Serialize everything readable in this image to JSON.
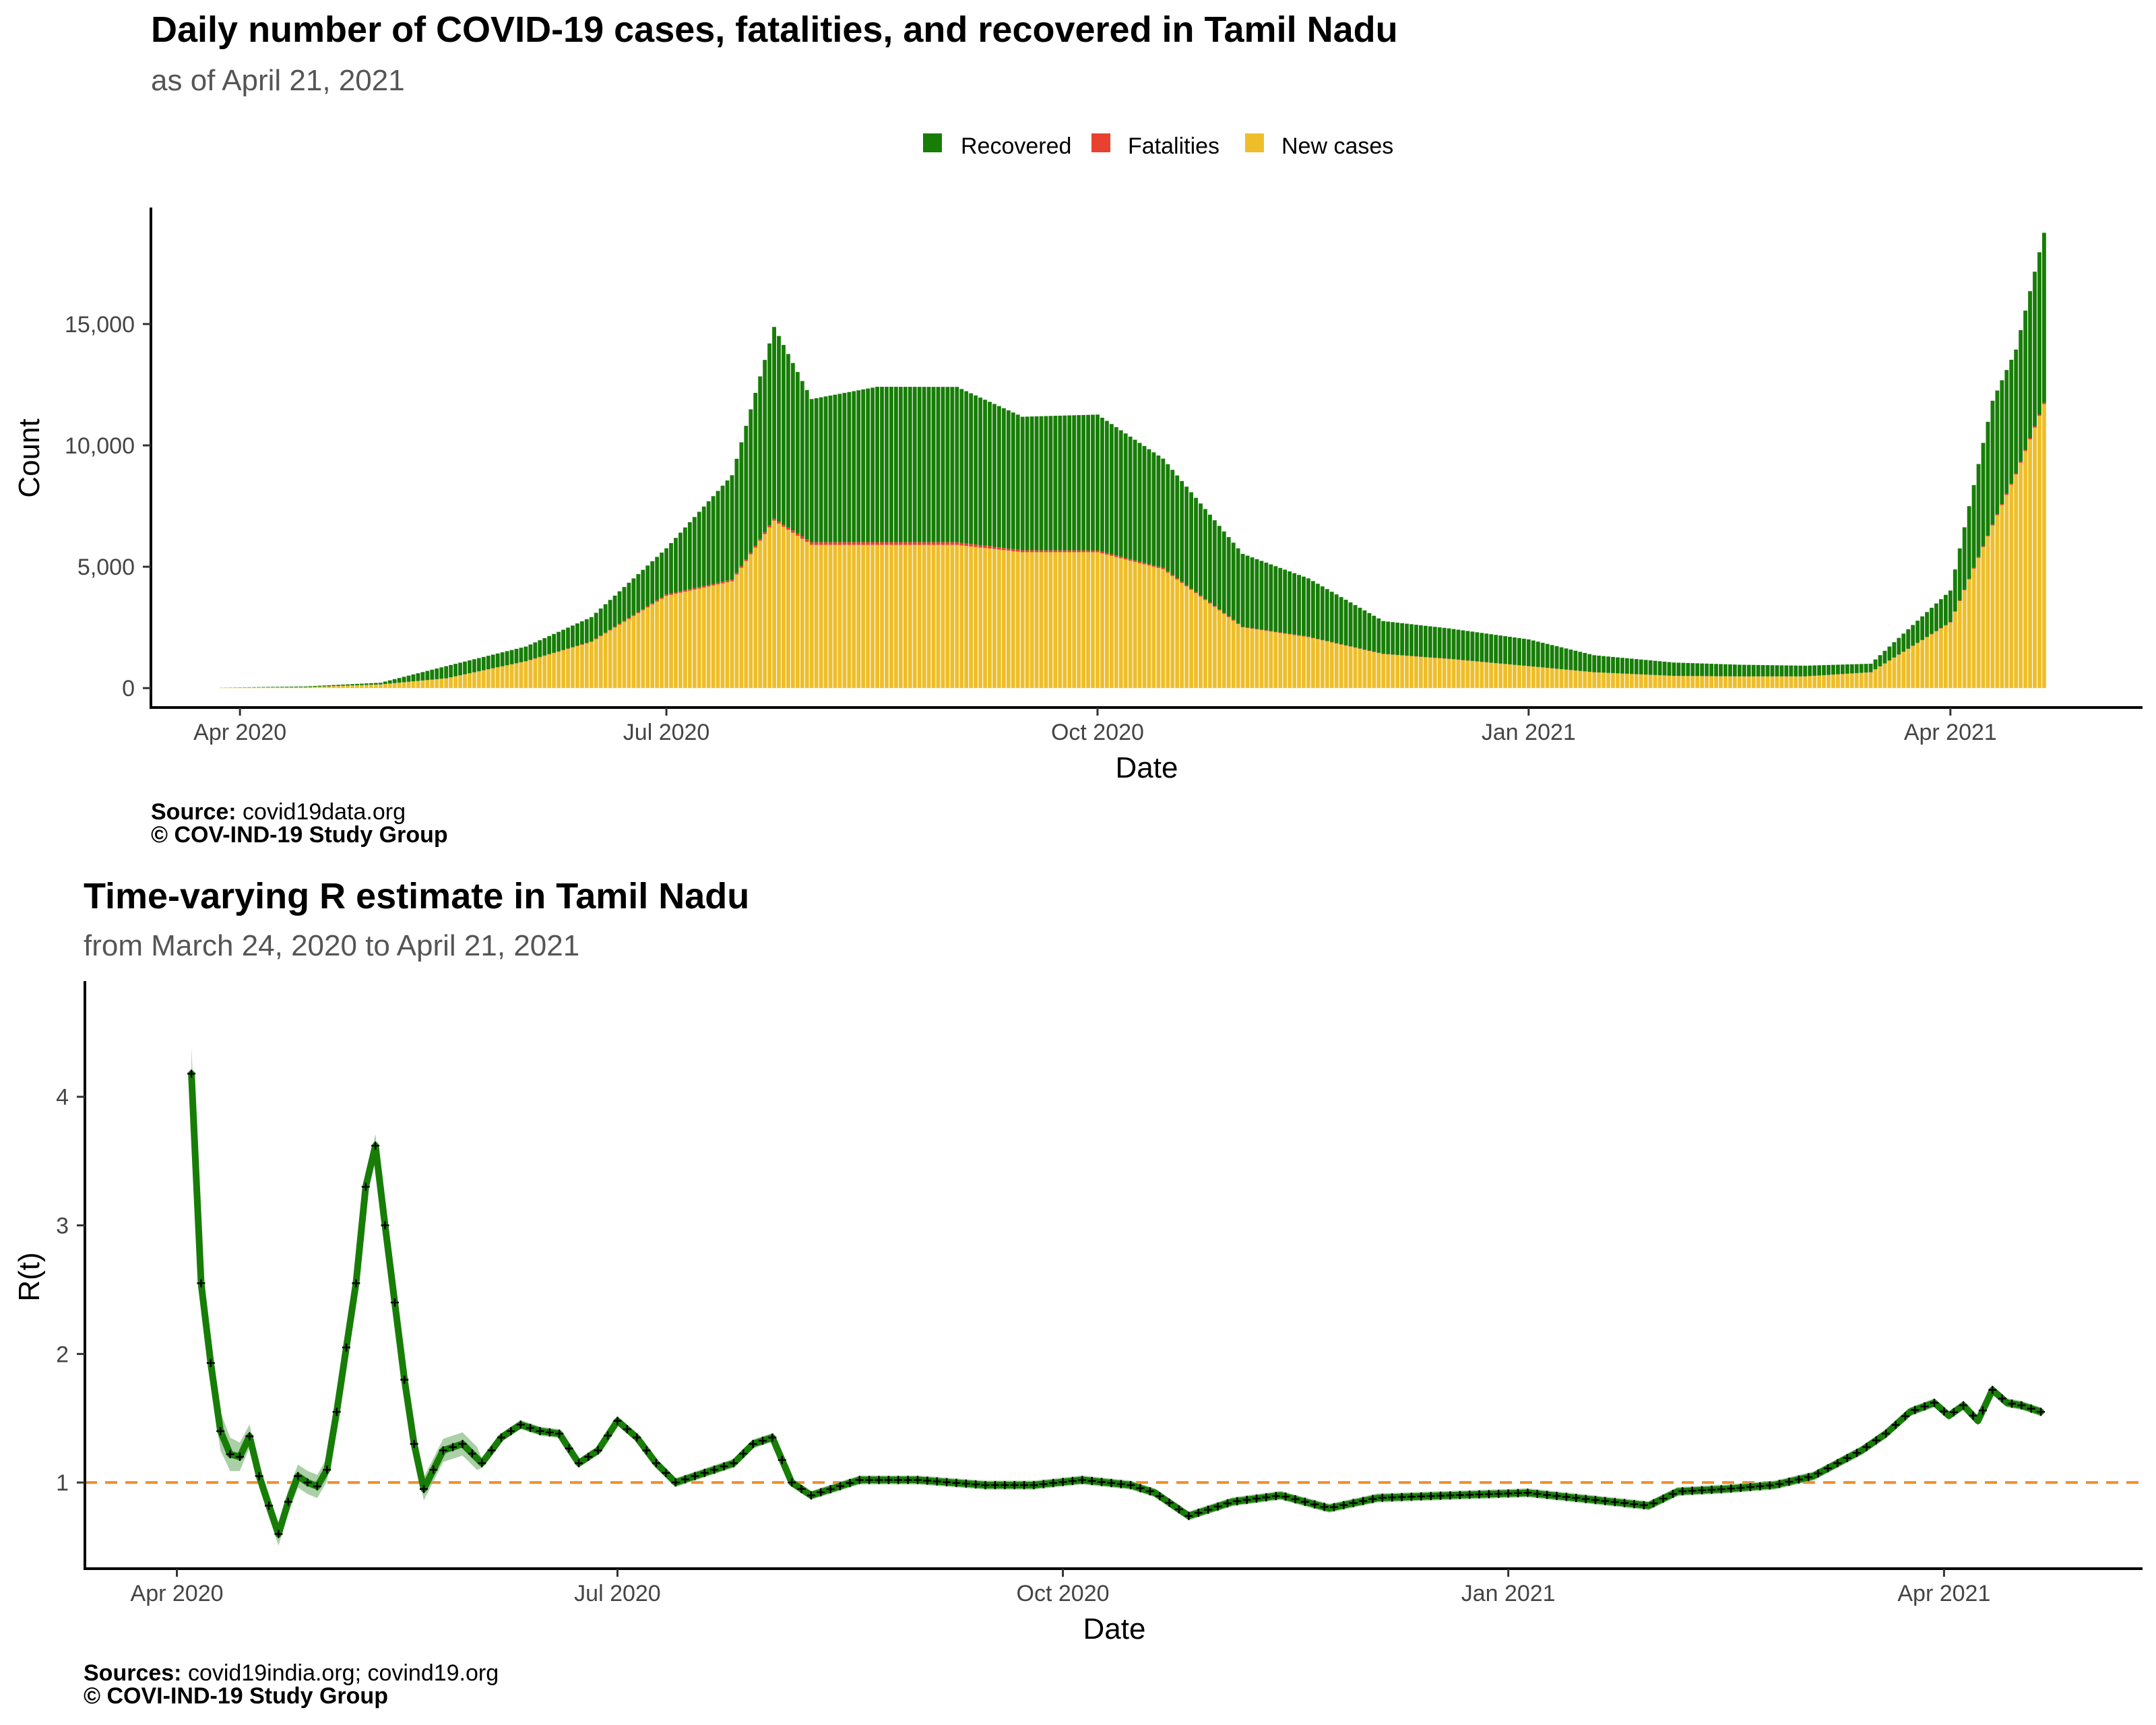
{
  "colors": {
    "recovered": "#177d07",
    "fatalities": "#e8412f",
    "new_cases": "#eebe2a",
    "r_line": "#177d07",
    "r_band": "#8fbf8a",
    "ref_line": "#f28e2b"
  },
  "chart_data": [
    {
      "type": "bar",
      "stacked": true,
      "title": "Daily number of COVID-19 cases, fatalities, and recovered in Tamil Nadu",
      "subtitle": "as of April 21, 2021",
      "xlabel": "Date",
      "ylabel": "Count",
      "legend_position": "top-center",
      "legend": [
        "Recovered",
        "Fatalities",
        "New cases"
      ],
      "x_ticks": [
        "Apr 2020",
        "Jul 2020",
        "Oct 2020",
        "Jan 2021",
        "Apr 2021"
      ],
      "x_tick_dates": [
        "2020-04-01",
        "2020-07-01",
        "2020-10-01",
        "2021-01-01",
        "2021-04-01"
      ],
      "y_ticks": [
        "0",
        "5,000",
        "10,000",
        "15,000"
      ],
      "y_tick_values": [
        0,
        5000,
        10000,
        15000
      ],
      "ylim": [
        -800,
        19800
      ],
      "xlim": [
        "2020-03-13",
        "2021-05-12"
      ],
      "grid": false,
      "source_label": "Source:",
      "source_text": "covid19data.org",
      "copyright": "© COV-IND-19 Study Group",
      "x_dates_sampled": [
        "2020-03-28",
        "2020-04-15",
        "2020-05-01",
        "2020-05-15",
        "2020-06-01",
        "2020-06-15",
        "2020-07-01",
        "2020-07-15",
        "2020-07-24",
        "2020-08-01",
        "2020-08-15",
        "2020-09-01",
        "2020-09-15",
        "2020-10-01",
        "2020-10-15",
        "2020-11-01",
        "2020-11-15",
        "2020-12-01",
        "2020-12-15",
        "2021-01-01",
        "2021-01-15",
        "2021-02-01",
        "2021-02-15",
        "2021-03-01",
        "2021-03-15",
        "2021-04-01",
        "2021-04-10",
        "2021-04-15",
        "2021-04-21"
      ],
      "series": [
        {
          "name": "New cases",
          "values": [
            20,
            40,
            150,
            400,
            1100,
            1900,
            3800,
            4400,
            6900,
            5900,
            5900,
            5900,
            5600,
            5600,
            4900,
            2500,
            2100,
            1400,
            1200,
            900,
            650,
            500,
            480,
            480,
            650,
            2700,
            6700,
            8800,
            11700
          ]
        },
        {
          "name": "Fatalities",
          "values": [
            0,
            1,
            2,
            5,
            12,
            25,
            60,
            70,
            80,
            110,
            115,
            110,
            80,
            70,
            55,
            30,
            20,
            12,
            10,
            8,
            5,
            4,
            4,
            4,
            5,
            20,
            40,
            50,
            60
          ]
        },
        {
          "name": "Recovered",
          "values": [
            0,
            30,
            70,
            500,
            600,
            1000,
            1900,
            4300,
            7900,
            5900,
            6400,
            6400,
            5500,
            5600,
            4500,
            3000,
            2400,
            1350,
            1250,
            1100,
            700,
            550,
            480,
            440,
            350,
            1300,
            5100,
            5100,
            7000
          ]
        }
      ]
    },
    {
      "type": "line",
      "title": "Time-varying R estimate in Tamil Nadu",
      "subtitle": "from March 24, 2020 to April 21, 2021",
      "xlabel": "Date",
      "ylabel": "R(t)",
      "x_ticks": [
        "Apr 2020",
        "Jul 2020",
        "Oct 2020",
        "Jan 2021",
        "Apr 2021"
      ],
      "x_tick_dates": [
        "2020-04-01",
        "2020-07-01",
        "2020-10-01",
        "2021-01-01",
        "2021-04-01"
      ],
      "y_ticks": [
        "1",
        "2",
        "3",
        "4"
      ],
      "y_tick_values": [
        1,
        2,
        3,
        4
      ],
      "ylim": [
        0.33,
        4.9
      ],
      "xlim": [
        "2020-03-13",
        "2021-05-12"
      ],
      "reference_line": 1,
      "grid": false,
      "source_label": "Sources:",
      "source_text": "covid19india.org; covind19.org",
      "copyright": "© COVI-IND-19 Study Group",
      "series": [
        {
          "x": [
            "2020-04-04",
            "2020-04-06",
            "2020-04-08",
            "2020-04-10",
            "2020-04-12",
            "2020-04-14",
            "2020-04-16",
            "2020-04-18",
            "2020-04-20",
            "2020-04-22",
            "2020-04-24",
            "2020-04-26",
            "2020-04-28",
            "2020-04-30",
            "2020-05-02",
            "2020-05-04",
            "2020-05-06",
            "2020-05-08",
            "2020-05-10",
            "2020-05-12",
            "2020-05-14",
            "2020-05-16",
            "2020-05-18",
            "2020-05-20",
            "2020-05-22",
            "2020-05-26",
            "2020-05-30",
            "2020-06-03",
            "2020-06-07",
            "2020-06-11",
            "2020-06-15",
            "2020-06-19",
            "2020-06-23",
            "2020-06-27",
            "2020-07-01",
            "2020-07-05",
            "2020-07-09",
            "2020-07-13",
            "2020-07-17",
            "2020-07-21",
            "2020-07-25",
            "2020-07-29",
            "2020-08-02",
            "2020-08-06",
            "2020-08-10",
            "2020-08-20",
            "2020-09-01",
            "2020-09-15",
            "2020-09-25",
            "2020-10-05",
            "2020-10-15",
            "2020-10-20",
            "2020-10-27",
            "2020-11-05",
            "2020-11-15",
            "2020-11-25",
            "2020-12-05",
            "2020-12-20",
            "2021-01-05",
            "2021-01-15",
            "2021-01-25",
            "2021-01-30",
            "2021-02-05",
            "2021-02-15",
            "2021-02-25",
            "2021-03-05",
            "2021-03-10",
            "2021-03-15",
            "2021-03-20",
            "2021-03-25",
            "2021-03-30",
            "2021-04-02",
            "2021-04-05",
            "2021-04-08",
            "2021-04-11",
            "2021-04-14",
            "2021-04-17",
            "2021-04-21"
          ],
          "y": [
            4.18,
            2.55,
            1.93,
            1.4,
            1.22,
            1.2,
            1.36,
            1.05,
            0.82,
            0.6,
            0.85,
            1.05,
            1.0,
            0.97,
            1.1,
            1.55,
            2.05,
            2.55,
            3.3,
            3.62,
            3.0,
            2.4,
            1.8,
            1.3,
            0.95,
            1.25,
            1.3,
            1.15,
            1.35,
            1.45,
            1.4,
            1.38,
            1.15,
            1.25,
            1.48,
            1.35,
            1.15,
            1.0,
            1.05,
            1.1,
            1.15,
            1.3,
            1.35,
            1.0,
            0.9,
            1.02,
            1.02,
            0.98,
            0.98,
            1.02,
            0.98,
            0.92,
            0.74,
            0.85,
            0.9,
            0.8,
            0.88,
            0.9,
            0.92,
            0.88,
            0.84,
            0.82,
            0.93,
            0.95,
            0.98,
            1.05,
            1.15,
            1.25,
            1.38,
            1.55,
            1.62,
            1.52,
            1.6,
            1.48,
            1.72,
            1.62,
            1.6,
            1.55
          ]
        }
      ]
    }
  ]
}
